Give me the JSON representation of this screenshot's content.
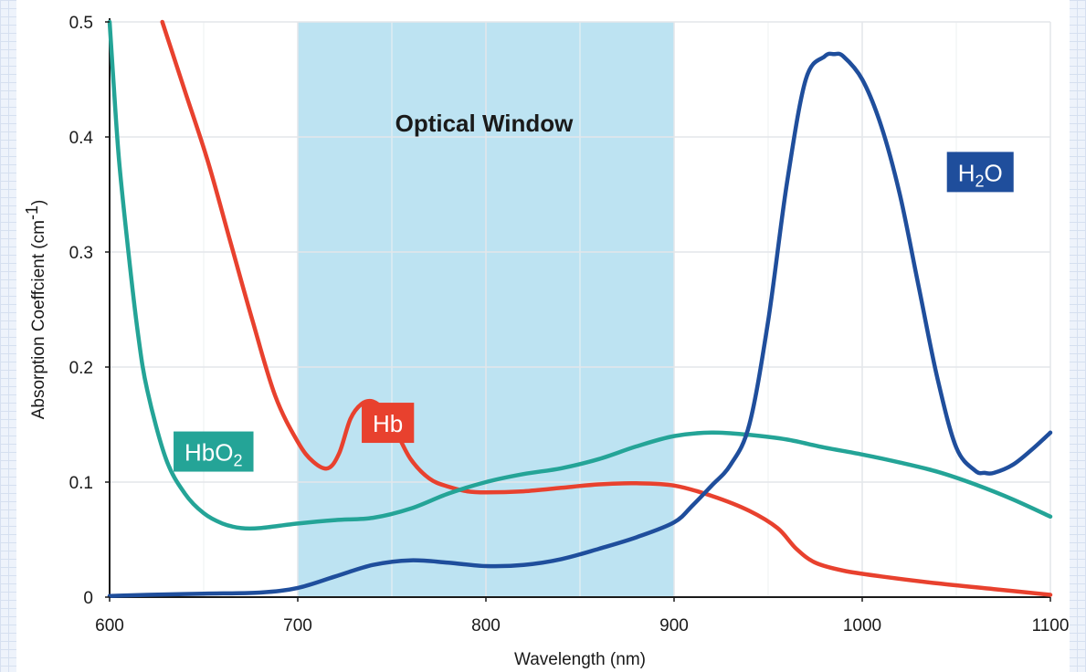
{
  "chart_data": {
    "type": "line",
    "xlabel": "Wavelength (nm)",
    "ylabel": "Absorption Coeffcient (cm",
    "ylabel_sup": "-1",
    "ylabel_close": ")",
    "xlim": [
      600,
      1100
    ],
    "ylim": [
      0,
      0.5
    ],
    "x_ticks": [
      600,
      700,
      800,
      900,
      1000,
      1100
    ],
    "y_ticks": [
      {
        "value": 0,
        "label": "0"
      },
      {
        "value": 0.1,
        "label": "0.1"
      },
      {
        "value": 0.2,
        "label": "0.2"
      },
      {
        "value": 0.3,
        "label": "0.3"
      },
      {
        "value": 0.4,
        "label": "0.4"
      },
      {
        "value": 0.5,
        "label": "0.5"
      }
    ],
    "grid": true,
    "shaded_region": {
      "label": "Optical Window",
      "x_range": [
        700,
        900
      ],
      "color": "#bde3f2"
    },
    "series": [
      {
        "name": "Hb",
        "label_main": "Hb",
        "label_sub": "",
        "label_tail": "",
        "label_anchor": [
          734,
          0.169
        ],
        "color": "#e8412e",
        "x": [
          628,
          640,
          652,
          664,
          676,
          688,
          700,
          708,
          716,
          722,
          728,
          734,
          740,
          746,
          752,
          760,
          770,
          780,
          790,
          800,
          820,
          840,
          860,
          880,
          900,
          920,
          940,
          955,
          965,
          975,
          990,
          1010,
          1040,
          1070,
          1100
        ],
        "y": [
          0.5,
          0.44,
          0.38,
          0.31,
          0.24,
          0.175,
          0.135,
          0.118,
          0.112,
          0.125,
          0.155,
          0.168,
          0.17,
          0.162,
          0.145,
          0.12,
          0.103,
          0.096,
          0.092,
          0.091,
          0.092,
          0.095,
          0.098,
          0.099,
          0.097,
          0.088,
          0.075,
          0.06,
          0.042,
          0.03,
          0.023,
          0.018,
          0.012,
          0.007,
          0.002
        ]
      },
      {
        "name": "HbO2",
        "label_main": "HbO",
        "label_sub": "2",
        "label_tail": "",
        "label_anchor": [
          634,
          0.144
        ],
        "color": "#24a497",
        "x": [
          600,
          602,
          605,
          610,
          615,
          620,
          630,
          640,
          650,
          660,
          670,
          680,
          700,
          720,
          740,
          760,
          780,
          800,
          820,
          840,
          860,
          880,
          900,
          920,
          940,
          960,
          980,
          1000,
          1020,
          1040,
          1060,
          1080,
          1100
        ],
        "y": [
          0.5,
          0.45,
          0.38,
          0.3,
          0.23,
          0.18,
          0.12,
          0.09,
          0.073,
          0.064,
          0.06,
          0.06,
          0.064,
          0.067,
          0.069,
          0.077,
          0.09,
          0.1,
          0.107,
          0.112,
          0.12,
          0.131,
          0.14,
          0.143,
          0.141,
          0.137,
          0.13,
          0.124,
          0.117,
          0.109,
          0.098,
          0.085,
          0.07
        ]
      },
      {
        "name": "H2O",
        "label_main": "H",
        "label_sub": "2",
        "label_tail": "O",
        "label_anchor": [
          1045,
          0.387
        ],
        "color": "#1f4e9c",
        "x": [
          600,
          620,
          650,
          680,
          700,
          720,
          740,
          760,
          780,
          800,
          820,
          840,
          860,
          880,
          900,
          910,
          920,
          930,
          940,
          950,
          960,
          970,
          980,
          985,
          990,
          1000,
          1010,
          1020,
          1030,
          1040,
          1050,
          1060,
          1065,
          1070,
          1080,
          1090,
          1100
        ],
        "y": [
          0.001,
          0.002,
          0.003,
          0.004,
          0.008,
          0.018,
          0.028,
          0.032,
          0.03,
          0.027,
          0.028,
          0.033,
          0.042,
          0.052,
          0.065,
          0.08,
          0.097,
          0.115,
          0.15,
          0.24,
          0.36,
          0.45,
          0.47,
          0.472,
          0.47,
          0.45,
          0.41,
          0.35,
          0.27,
          0.19,
          0.13,
          0.11,
          0.108,
          0.108,
          0.115,
          0.128,
          0.143
        ]
      }
    ]
  }
}
